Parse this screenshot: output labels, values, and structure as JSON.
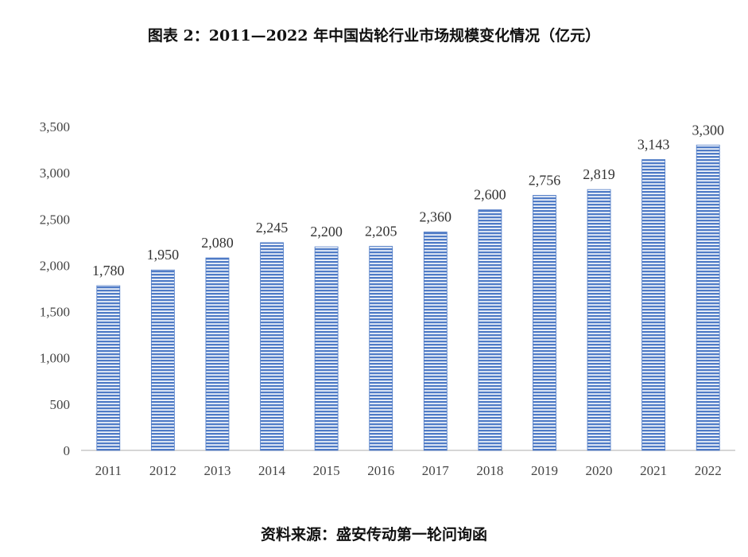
{
  "title": "图表 2：2011—2022 年中国齿轮行业市场规模变化情况（亿元）",
  "source": "资料来源：盛安传动第一轮问询函",
  "chart_data": {
    "type": "bar",
    "title": "图表 2：2011—2022 年中国齿轮行业市场规模变化情况（亿元）",
    "xlabel": "",
    "ylabel": "",
    "categories": [
      "2011",
      "2012",
      "2013",
      "2014",
      "2015",
      "2016",
      "2017",
      "2018",
      "2019",
      "2020",
      "2021",
      "2022"
    ],
    "values": [
      1780,
      1950,
      2080,
      2245,
      2200,
      2205,
      2360,
      2600,
      2756,
      2819,
      3143,
      3300
    ],
    "data_labels": [
      "1,780",
      "1,950",
      "2,080",
      "2,245",
      "2,200",
      "2,205",
      "2,360",
      "2,600",
      "2,756",
      "2,819",
      "3,143",
      "3,300"
    ],
    "ylim": [
      0,
      3500
    ],
    "yticks": [
      0,
      500,
      1000,
      1500,
      2000,
      2500,
      3000,
      3500
    ],
    "ytick_labels": [
      "0",
      "500",
      "1,000",
      "1,500",
      "2,000",
      "2,500",
      "3,000",
      "3,500"
    ],
    "grid": false,
    "legend": "none",
    "bar_color": "#4f7bc6"
  }
}
